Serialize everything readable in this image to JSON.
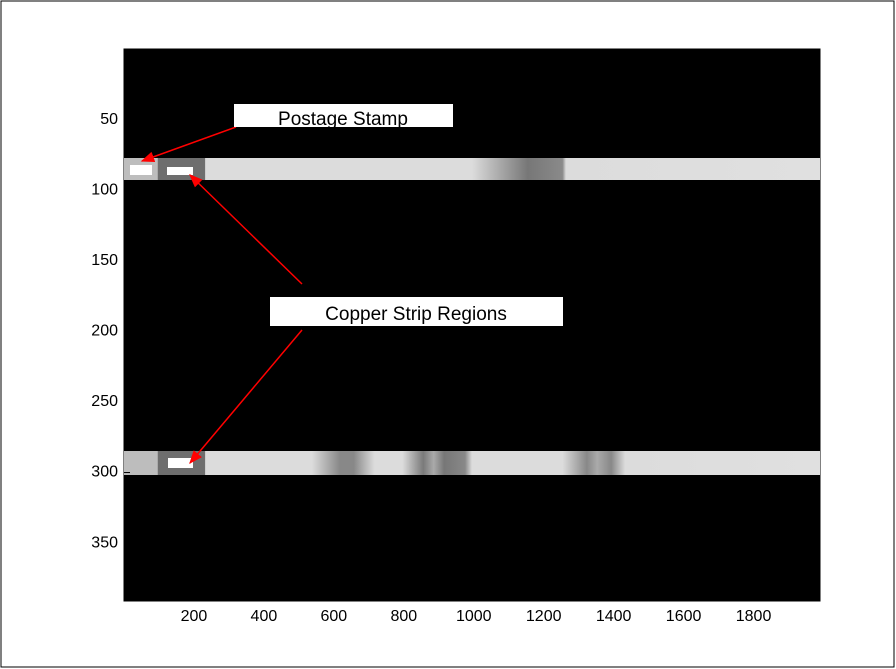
{
  "chart_data": {
    "type": "image",
    "colormap": "gray",
    "y_reversed": true,
    "xlim": [
      0,
      1990
    ],
    "ylim": [
      0,
      391
    ],
    "xticks": [
      200,
      400,
      600,
      800,
      1000,
      1200,
      1400,
      1600,
      1800
    ],
    "yticks": [
      50,
      100,
      150,
      200,
      250,
      300,
      350
    ],
    "annotation_color": "#ff0000",
    "annotations": [
      {
        "text": "Postage Stamp"
      },
      {
        "text": "Copper Strip Regions"
      }
    ]
  }
}
